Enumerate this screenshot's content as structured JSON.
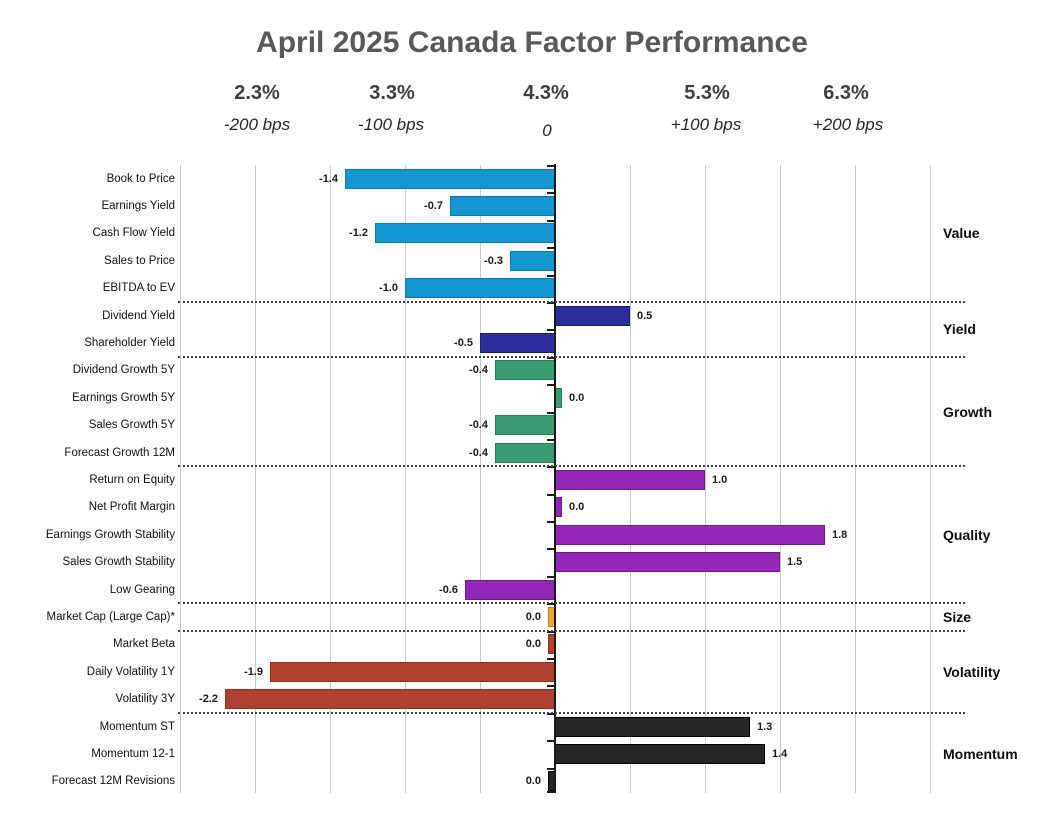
{
  "title": "April 2025 Canada Factor Performance",
  "colors": {
    "background": "#FFFFFF",
    "title_text": "#595959",
    "axis_header_text": "#3F3F3F",
    "gridline": "#C9C9C9",
    "axis": "#1A1A1A",
    "separator": "#404040"
  },
  "chart_data": {
    "type": "bar",
    "orientation": "horizontal",
    "title": "April 2025 Canada Factor Performance",
    "x_axis": {
      "tick_labels_pct": [
        "2.3%",
        "3.3%",
        "4.3%",
        "5.3%",
        "6.3%"
      ],
      "tick_labels_bps": [
        "-200 bps",
        "-100 bps",
        "0",
        "+100 bps",
        "+200 bps"
      ],
      "zero_at_pct": "4.3%",
      "range": [
        -2.5,
        2.5
      ],
      "gridline_step": 0.5,
      "grid": true
    },
    "legend_position": "right-group-labels",
    "groups": [
      {
        "name": "Value",
        "color": "#1697D4",
        "border": "#0E7AB0",
        "items": [
          {
            "label": "Book to Price",
            "value": -1.4,
            "display": "-1.4"
          },
          {
            "label": "Earnings Yield",
            "value": -0.7,
            "display": "-0.7"
          },
          {
            "label": "Cash Flow Yield",
            "value": -1.2,
            "display": "-1.2"
          },
          {
            "label": "Sales to Price",
            "value": -0.3,
            "display": "-0.3"
          },
          {
            "label": "EBITDA to EV",
            "value": -1.0,
            "display": "-1.0"
          }
        ]
      },
      {
        "name": "Yield",
        "color": "#2F2D9E",
        "border": "#1F1D6E",
        "items": [
          {
            "label": "Dividend Yield",
            "value": 0.5,
            "display": "0.5"
          },
          {
            "label": "Shareholder Yield",
            "value": -0.5,
            "display": "-0.5"
          }
        ]
      },
      {
        "name": "Growth",
        "color": "#3B9C72",
        "border": "#2A7C58",
        "items": [
          {
            "label": "Dividend Growth 5Y",
            "value": -0.4,
            "display": "-0.4"
          },
          {
            "label": "Earnings Growth 5Y",
            "value": 0.0,
            "display": "0.0",
            "zero_side": "pos"
          },
          {
            "label": "Sales Growth 5Y",
            "value": -0.4,
            "display": "-0.4"
          },
          {
            "label": "Forecast Growth 12M",
            "value": -0.4,
            "display": "-0.4"
          }
        ]
      },
      {
        "name": "Quality",
        "color": "#9126B8",
        "border": "#6D1B8E",
        "items": [
          {
            "label": "Return on Equity",
            "value": 1.0,
            "display": "1.0"
          },
          {
            "label": "Net Profit Margin",
            "value": 0.0,
            "display": "0.0",
            "zero_side": "pos"
          },
          {
            "label": "Earnings Growth Stability",
            "value": 1.8,
            "display": "1.8"
          },
          {
            "label": "Sales Growth Stability",
            "value": 1.5,
            "display": "1.5"
          },
          {
            "label": "Low Gearing",
            "value": -0.6,
            "display": "-0.6"
          }
        ]
      },
      {
        "name": "Size",
        "color": "#F0A52E",
        "border": "#C9831D",
        "items": [
          {
            "label": "Market Cap (Large Cap)*",
            "value": 0.0,
            "display": "0.0",
            "zero_side": "neg"
          }
        ]
      },
      {
        "name": "Volatility",
        "color": "#B04030",
        "border": "#8C3022",
        "items": [
          {
            "label": "Market Beta",
            "value": 0.0,
            "display": "0.0",
            "zero_side": "neg"
          },
          {
            "label": "Daily Volatility 1Y",
            "value": -1.9,
            "display": "-1.9"
          },
          {
            "label": "Volatility 3Y",
            "value": -2.2,
            "display": "-2.2"
          }
        ]
      },
      {
        "name": "Momentum",
        "color": "#262626",
        "border": "#000000",
        "items": [
          {
            "label": "Momentum ST",
            "value": 1.3,
            "display": "1.3"
          },
          {
            "label": "Momentum 12-1",
            "value": 1.4,
            "display": "1.4"
          },
          {
            "label": "Forecast 12M Revisions",
            "value": 0.0,
            "display": "0.0",
            "zero_side": "neg"
          }
        ]
      }
    ]
  }
}
